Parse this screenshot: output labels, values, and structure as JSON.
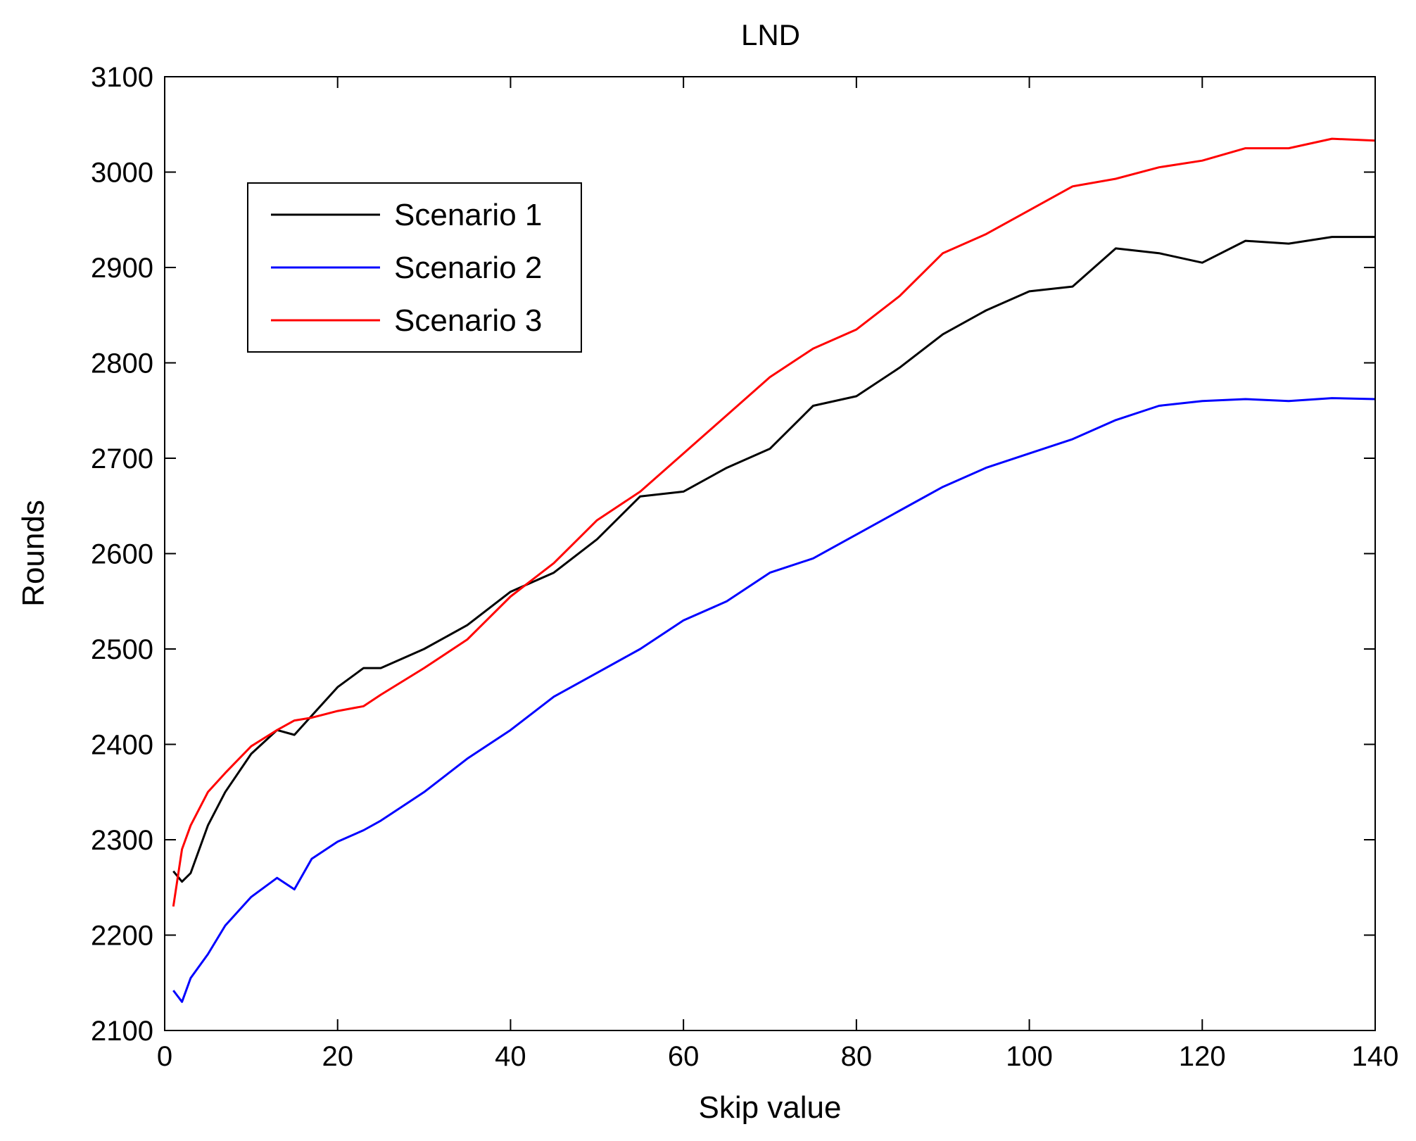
{
  "chart_data": {
    "type": "line",
    "title": "LND",
    "xlabel": "Skip value",
    "ylabel": "Rounds",
    "xlim": [
      0,
      140
    ],
    "ylim": [
      2100,
      3100
    ],
    "xticks": [
      0,
      20,
      40,
      60,
      80,
      100,
      120,
      140
    ],
    "yticks": [
      2100,
      2200,
      2300,
      2400,
      2500,
      2600,
      2700,
      2800,
      2900,
      3000,
      3100
    ],
    "grid": false,
    "legend_position": "top-left",
    "x": [
      1,
      2,
      3,
      5,
      7,
      10,
      13,
      15,
      17,
      20,
      23,
      25,
      30,
      35,
      40,
      45,
      50,
      55,
      60,
      65,
      70,
      75,
      80,
      85,
      90,
      95,
      100,
      105,
      110,
      115,
      120,
      125,
      130,
      135,
      140
    ],
    "series": [
      {
        "name": "Scenario 1",
        "color": "#000000",
        "values": [
          2267,
          2256,
          2265,
          2315,
          2350,
          2390,
          2415,
          2410,
          2430,
          2460,
          2480,
          2480,
          2500,
          2525,
          2560,
          2580,
          2615,
          2660,
          2665,
          2690,
          2710,
          2755,
          2765,
          2795,
          2830,
          2855,
          2875,
          2880,
          2920,
          2915,
          2905,
          2928,
          2925,
          2932,
          2932
        ]
      },
      {
        "name": "Scenario 2",
        "color": "#0000ff",
        "values": [
          2142,
          2130,
          2155,
          2180,
          2210,
          2240,
          2260,
          2248,
          2280,
          2298,
          2310,
          2320,
          2350,
          2385,
          2415,
          2450,
          2475,
          2500,
          2530,
          2550,
          2580,
          2595,
          2620,
          2645,
          2670,
          2690,
          2705,
          2720,
          2740,
          2755,
          2760,
          2762,
          2760,
          2763,
          2762
        ]
      },
      {
        "name": "Scenario 3",
        "color": "#ff0000",
        "values": [
          2230,
          2290,
          2315,
          2350,
          2370,
          2398,
          2415,
          2425,
          2428,
          2435,
          2440,
          2452,
          2480,
          2510,
          2555,
          2590,
          2635,
          2665,
          2705,
          2745,
          2785,
          2815,
          2835,
          2870,
          2915,
          2935,
          2960,
          2985,
          2993,
          3005,
          3012,
          3025,
          3025,
          3035,
          3033
        ]
      }
    ]
  }
}
